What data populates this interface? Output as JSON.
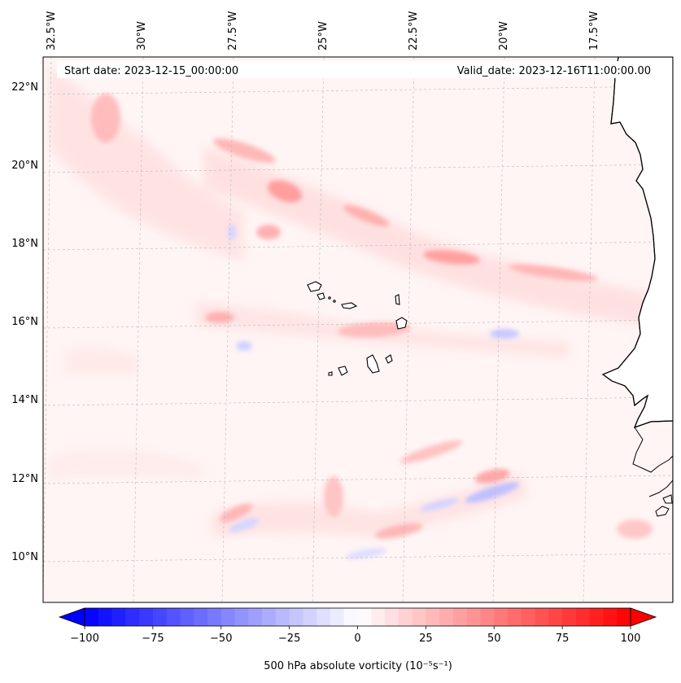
{
  "map": {
    "start_date": "Start date: 2023-12-15_00:00:00",
    "valid_date": "Valid_date: 2023-12-16T11:00:00.00",
    "lon_labels": [
      "32.5°W",
      "30°W",
      "27.5°W",
      "25°W",
      "22.5°W",
      "20°W",
      "17.5°W"
    ],
    "lat_labels": [
      "22°N",
      "20°N",
      "18°N",
      "16°N",
      "14°N",
      "12°N",
      "10°N"
    ],
    "field": "500 hPa absolute vorticity",
    "colors": {
      "negative": "#0000ff",
      "zero": "#ffffff",
      "positive": "#ff0000",
      "coastline": "#000000",
      "gridline": "#b0b0b0"
    }
  },
  "colorbar": {
    "tick_labels": [
      "−100",
      "−75",
      "−50",
      "−25",
      "0",
      "25",
      "50",
      "75",
      "100"
    ],
    "min": -100,
    "max": 100,
    "label": "500 hPa absolute vorticity (10⁻⁵s⁻¹)"
  }
}
